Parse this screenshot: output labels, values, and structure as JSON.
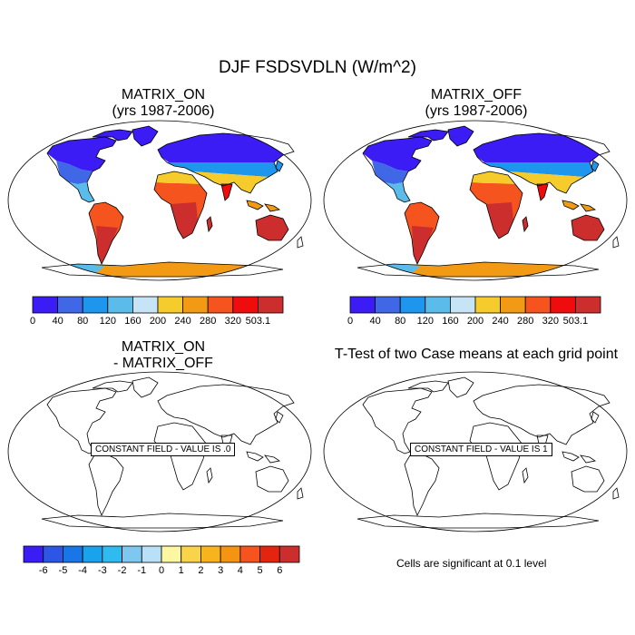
{
  "title": "DJF FSDSVDLN (W/m^2)",
  "panels": {
    "top_left": {
      "title_line1": "MATRIX_ON",
      "title_line2": "(yrs 1987-2006)"
    },
    "top_right": {
      "title_line1": "MATRIX_OFF",
      "title_line2": "(yrs 1987-2006)"
    },
    "bottom_left": {
      "title_line1": "MATRIX_ON",
      "title_line2": "- MATRIX_OFF",
      "message": "CONSTANT FIELD - VALUE IS .0"
    },
    "bottom_right": {
      "title_line1": "T-Test of two Case means at each grid point",
      "message": "CONSTANT FIELD - VALUE IS 1",
      "footnote": "Cells are significant at 0.1 level"
    }
  },
  "colorbars": {
    "abs": {
      "labels": [
        "0",
        "40",
        "80",
        "120",
        "160",
        "200",
        "240",
        "280",
        "320",
        "503.1"
      ],
      "colors": [
        "#3c1cf5",
        "#3f67e6",
        "#1f96ee",
        "#5bbcec",
        "#c7e4f6",
        "#f6cb2c",
        "#f29a14",
        "#f5541e",
        "#ee0c0c",
        "#cc2d2d"
      ]
    },
    "diff": {
      "labels": [
        "-6",
        "-5",
        "-4",
        "-3",
        "-2",
        "-1",
        "0",
        "1",
        "2",
        "3",
        "4",
        "5",
        "6"
      ],
      "colors": [
        "#3a1cf5",
        "#2d55e6",
        "#1976e6",
        "#1aa3ec",
        "#30bbf0",
        "#7ec7ef",
        "#b9e0f7",
        "#fdf7a2",
        "#f9d34a",
        "#f7b41d",
        "#f59312",
        "#f5541e",
        "#e3250f",
        "#cc2d2d"
      ]
    }
  },
  "icons": {
    "map_projection": "robinson-world-map-icon"
  }
}
